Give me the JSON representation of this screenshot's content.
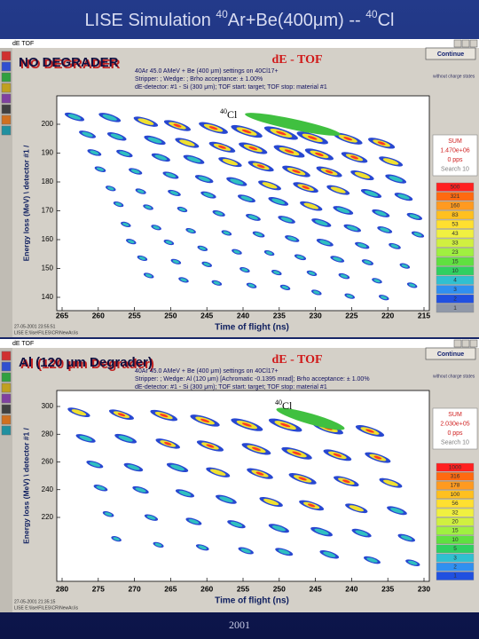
{
  "slide_title": {
    "prefix": "LISE Simulation ",
    "mass1": "40",
    "reaction": "Ar+Be(400μm) -- ",
    "mass2": "40",
    "element": "Cl"
  },
  "panels": [
    {
      "window_title": "dE  TOF",
      "label": "NO DEGRADER",
      "plot_title": "dE - TOF",
      "info_lines": [
        "40Ar 45.0 AMeV + Be (400 μm)     settings on 40Cl17+",
        "Stripper:  ; Wedge:  ; Brho acceptance: ± 1.00%",
        "dE-detector: #1 - Si (300 μm); TOF start: target;  TOF stop: material #1"
      ],
      "button": "Continue",
      "note": "without charge states",
      "y_label": "Energy loss (MeV) \\ detector #1 /",
      "y_ticks": [
        "200",
        "190",
        "180",
        "170",
        "160",
        "150",
        "140"
      ],
      "x_label": "Time of flight (ns)",
      "x_ticks": [
        "265",
        "260",
        "255",
        "250",
        "245",
        "240",
        "235",
        "230",
        "225",
        "220",
        "215"
      ],
      "annotation": {
        "mass": "40",
        "element": "Cl"
      },
      "sum": {
        "title": "SUM",
        "count": "1.470e+06",
        "rate": "0 pps",
        "search": "Search 10"
      },
      "scale": [
        "500",
        "321",
        "160",
        "83",
        "53",
        "43",
        "33",
        "23",
        "15",
        "10",
        "4",
        "3",
        "2",
        "1"
      ],
      "timestamp": "27-05-2001   23:55:51",
      "file": "LISE   E:\\lise\\FILES\\CR\\NewAr.lis"
    },
    {
      "window_title": "dE  TOF",
      "label": "Al (120 μm Degrader)",
      "plot_title": "dE - TOF",
      "info_lines": [
        "40Ar 45.0 AMeV + Be (400 μm)     settings on 40Cl17+",
        "Stripper:  ; Wedge: Al (120 μm) [Achromatic -0.1395 mrad]; Brho acceptance: ± 1.00%",
        "dE-detector: #1 - Si (300 μm); TOF start: target;  TOF stop: material #1"
      ],
      "button": "Continue",
      "note": "without charge states",
      "y_label": "Energy loss (MeV) \\ detector #1 /",
      "y_ticks": [
        "300",
        "280",
        "260",
        "240",
        "220"
      ],
      "x_label": "Time of flight (ns)",
      "x_ticks": [
        "280",
        "275",
        "270",
        "265",
        "260",
        "255",
        "250",
        "245",
        "240",
        "235",
        "230"
      ],
      "annotation": {
        "mass": "40",
        "element": "Cl"
      },
      "sum": {
        "title": "SUM",
        "count": "2.030e+05",
        "rate": "0 pps",
        "search": "Search 10"
      },
      "scale": [
        "1000",
        "316",
        "178",
        "100",
        "56",
        "32",
        "20",
        "15",
        "10",
        "5",
        "3",
        "2",
        "1"
      ],
      "timestamp": "27-05-2001   21:35:15",
      "file": "LISE   E:\\lise\\FILES\\CR\\NewAr.lis"
    }
  ],
  "footer": {
    "year": "2001"
  }
}
